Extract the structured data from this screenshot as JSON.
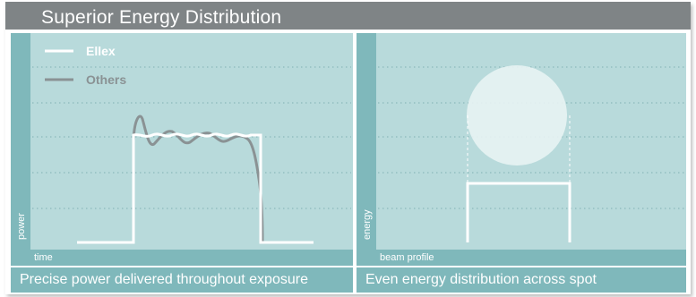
{
  "title": "Superior Energy Distribution",
  "left_panel": {
    "legend": [
      {
        "label": "Ellex",
        "color": "#ffffff"
      },
      {
        "label": "Others",
        "color": "#8a9294"
      }
    ],
    "y_label": "power",
    "x_label": "time",
    "caption": "Precise power delivered throughout exposure"
  },
  "right_panel": {
    "y_label": "energy",
    "x_label": "beam profile",
    "caption": "Even energy distribution across spot"
  },
  "colors": {
    "title_bar": "#7f8486",
    "panel_bg": "#b8dadb",
    "accent": "#7fb8bb",
    "ellex_line": "#ffffff",
    "others_line": "#8a9294"
  }
}
